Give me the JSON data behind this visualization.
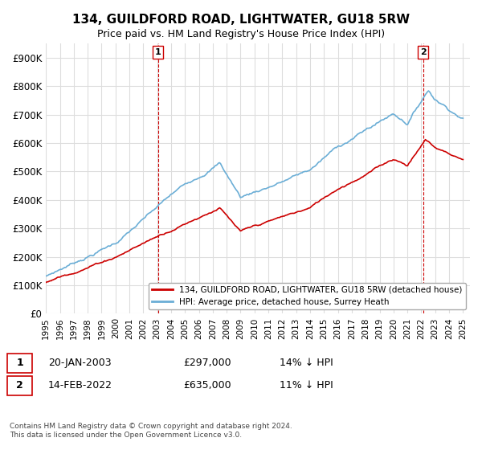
{
  "title": "134, GUILDFORD ROAD, LIGHTWATER, GU18 5RW",
  "subtitle": "Price paid vs. HM Land Registry's House Price Index (HPI)",
  "ylabel_ticks": [
    "£0",
    "£100K",
    "£200K",
    "£300K",
    "£400K",
    "£500K",
    "£600K",
    "£700K",
    "£800K",
    "£900K"
  ],
  "ylim": [
    0,
    950000
  ],
  "xlim_start": 1995.0,
  "xlim_end": 2025.5,
  "xticks": [
    1995,
    1996,
    1997,
    1998,
    1999,
    2000,
    2001,
    2002,
    2003,
    2004,
    2005,
    2006,
    2007,
    2008,
    2009,
    2010,
    2011,
    2012,
    2013,
    2014,
    2015,
    2016,
    2017,
    2018,
    2019,
    2020,
    2021,
    2022,
    2023,
    2024,
    2025
  ],
  "hpi_color": "#6baed6",
  "price_color": "#cc0000",
  "marker1_year": 2003.05,
  "marker1_value": 297000,
  "marker2_year": 2022.12,
  "marker2_value": 635000,
  "legend_label1": "134, GUILDFORD ROAD, LIGHTWATER, GU18 5RW (detached house)",
  "legend_label2": "HPI: Average price, detached house, Surrey Heath",
  "note1_label": "1",
  "note1_date": "20-JAN-2003",
  "note1_price": "£297,000",
  "note1_hpi": "14% ↓ HPI",
  "note2_label": "2",
  "note2_date": "14-FEB-2022",
  "note2_price": "£635,000",
  "note2_hpi": "11% ↓ HPI",
  "footer": "Contains HM Land Registry data © Crown copyright and database right 2024.\nThis data is licensed under the Open Government Licence v3.0.",
  "bg_color": "#ffffff",
  "grid_color": "#dddddd"
}
